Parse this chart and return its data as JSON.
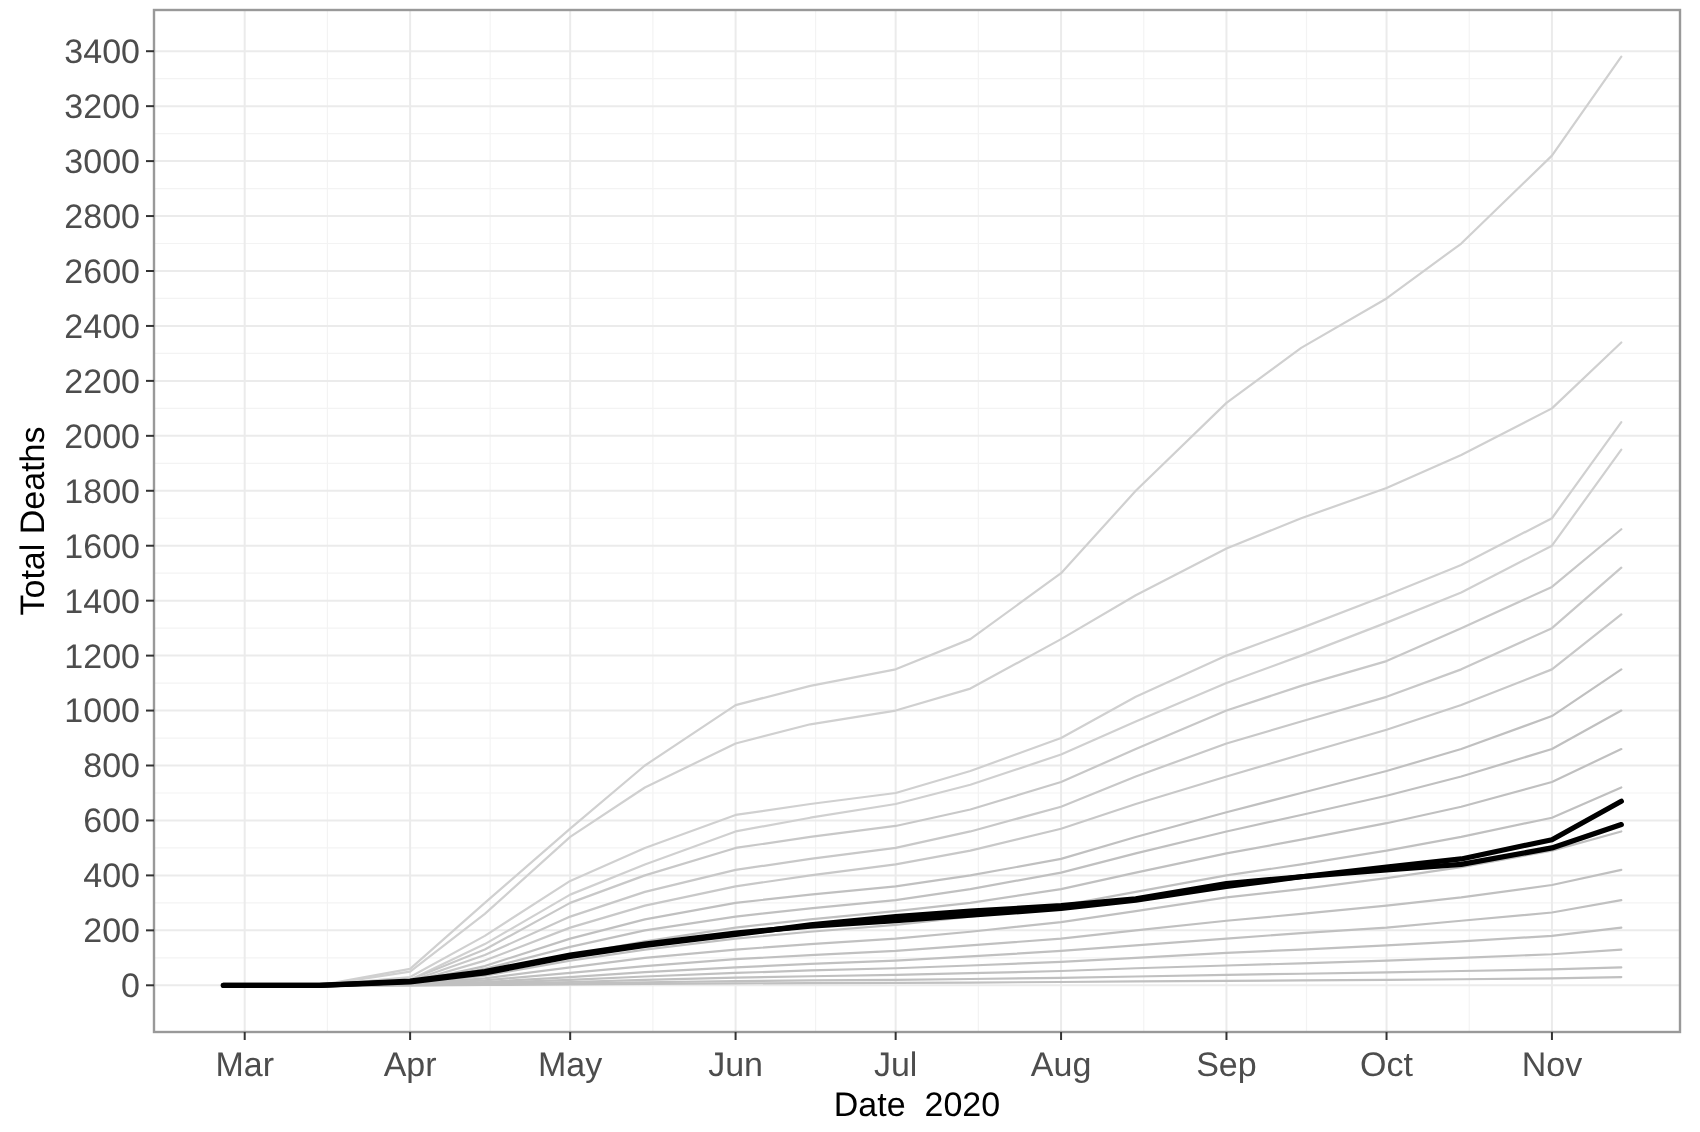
{
  "chart_data": {
    "type": "line",
    "xlabel": "Date  2020",
    "ylabel": "Total Deaths",
    "x": [
      "2020-03-15",
      "2020-04-01",
      "2020-04-15",
      "2020-05-01",
      "2020-05-15",
      "2020-06-01",
      "2020-06-15",
      "2020-07-01",
      "2020-07-15",
      "2020-08-01",
      "2020-08-15",
      "2020-09-01",
      "2020-09-15",
      "2020-10-01",
      "2020-10-15",
      "2020-11-01",
      "2020-11-14"
    ],
    "series": [
      {
        "color": "#d0d0d0",
        "values": [
          0,
          60,
          300,
          570,
          800,
          1020,
          1090,
          1150,
          1260,
          1500,
          1800,
          2120,
          2320,
          2500,
          2700,
          3020,
          3380
        ]
      },
      {
        "color": "#d0d0d0",
        "values": [
          0,
          50,
          260,
          540,
          720,
          880,
          950,
          1000,
          1080,
          1260,
          1420,
          1590,
          1700,
          1810,
          1930,
          2100,
          2340
        ]
      },
      {
        "color": "#d0d0d0",
        "values": [
          0,
          30,
          180,
          380,
          500,
          620,
          660,
          700,
          780,
          900,
          1050,
          1200,
          1300,
          1420,
          1530,
          1700,
          2050
        ]
      },
      {
        "color": "#d0d0d0",
        "values": [
          0,
          20,
          150,
          330,
          440,
          560,
          610,
          660,
          730,
          840,
          960,
          1100,
          1200,
          1320,
          1430,
          1600,
          1950
        ]
      },
      {
        "color": "#c8c8c8",
        "values": [
          0,
          20,
          130,
          300,
          400,
          500,
          540,
          580,
          640,
          740,
          860,
          1000,
          1090,
          1180,
          1300,
          1450,
          1660
        ]
      },
      {
        "color": "#c8c8c8",
        "values": [
          0,
          15,
          110,
          250,
          340,
          420,
          460,
          500,
          560,
          650,
          760,
          880,
          960,
          1050,
          1150,
          1300,
          1520
        ]
      },
      {
        "color": "#c8c8c8",
        "values": [
          0,
          10,
          90,
          210,
          290,
          360,
          400,
          440,
          490,
          570,
          660,
          760,
          840,
          930,
          1020,
          1150,
          1350
        ]
      },
      {
        "color": "#c0c0c0",
        "values": [
          0,
          10,
          70,
          170,
          240,
          300,
          330,
          360,
          400,
          460,
          540,
          630,
          700,
          780,
          860,
          980,
          1150
        ]
      },
      {
        "color": "#c0c0c0",
        "values": [
          0,
          8,
          60,
          140,
          200,
          250,
          280,
          310,
          350,
          410,
          480,
          560,
          620,
          690,
          760,
          860,
          1000
        ]
      },
      {
        "color": "#c0c0c0",
        "values": [
          0,
          5,
          45,
          110,
          160,
          210,
          240,
          270,
          300,
          350,
          410,
          480,
          530,
          590,
          650,
          740,
          860
        ]
      },
      {
        "color": "#c0c0c0",
        "values": [
          0,
          5,
          35,
          90,
          130,
          170,
          195,
          220,
          250,
          290,
          340,
          400,
          440,
          490,
          540,
          610,
          720
        ]
      },
      {
        "color": "#c0c0c0",
        "values": [
          0,
          4,
          25,
          65,
          100,
          130,
          150,
          170,
          195,
          230,
          270,
          320,
          350,
          390,
          430,
          490,
          560
        ]
      },
      {
        "color": "#c0c0c0",
        "values": [
          0,
          3,
          18,
          45,
          70,
          95,
          110,
          125,
          145,
          170,
          200,
          235,
          260,
          290,
          320,
          365,
          420
        ]
      },
      {
        "color": "#c0c0c0",
        "values": [
          0,
          2,
          12,
          30,
          48,
          65,
          78,
          90,
          105,
          125,
          145,
          170,
          190,
          210,
          235,
          265,
          310
        ]
      },
      {
        "color": "#c0c0c0",
        "values": [
          0,
          1,
          8,
          20,
          32,
          45,
          54,
          62,
          72,
          85,
          100,
          118,
          130,
          145,
          160,
          180,
          210
        ]
      },
      {
        "color": "#c0c0c0",
        "values": [
          0,
          1,
          5,
          12,
          20,
          28,
          33,
          38,
          44,
          52,
          62,
          72,
          80,
          90,
          100,
          113,
          130
        ]
      },
      {
        "color": "#c0c0c0",
        "values": [
          0,
          0,
          3,
          7,
          11,
          15,
          18,
          20,
          23,
          27,
          32,
          38,
          42,
          47,
          52,
          58,
          65
        ]
      },
      {
        "color": "#c0c0c0",
        "values": [
          0,
          0,
          1,
          3,
          5,
          7,
          8,
          9,
          10,
          12,
          14,
          16,
          18,
          20,
          22,
          25,
          30
        ]
      },
      {
        "color": "#000000",
        "x": [
          "2020-02-26",
          "2020-03-15",
          "2020-04-01",
          "2020-04-15",
          "2020-05-01",
          "2020-05-15",
          "2020-06-01",
          "2020-06-15",
          "2020-07-01",
          "2020-07-15",
          "2020-08-01",
          "2020-08-15",
          "2020-09-01",
          "2020-09-15",
          "2020-10-01",
          "2020-10-15",
          "2020-11-01",
          "2020-11-14"
        ],
        "values": [
          0,
          0,
          15,
          50,
          110,
          150,
          190,
          215,
          235,
          255,
          280,
          310,
          360,
          395,
          430,
          460,
          530,
          670
        ]
      },
      {
        "color": "#000000",
        "x": [
          "2020-02-26",
          "2020-03-15",
          "2020-04-01",
          "2020-04-15",
          "2020-05-01",
          "2020-05-15",
          "2020-06-01",
          "2020-06-15",
          "2020-07-01",
          "2020-07-15",
          "2020-08-01",
          "2020-08-15",
          "2020-09-01",
          "2020-09-15",
          "2020-10-01",
          "2020-10-15",
          "2020-11-01",
          "2020-11-14"
        ],
        "values": [
          0,
          0,
          12,
          45,
          105,
          145,
          185,
          220,
          250,
          270,
          290,
          315,
          370,
          395,
          420,
          440,
          500,
          585
        ]
      }
    ],
    "xlim": [
      "2020-02-13",
      "2020-11-25"
    ],
    "xticks": [
      {
        "value": "2020-03-01",
        "label": "Mar"
      },
      {
        "value": "2020-04-01",
        "label": "Apr"
      },
      {
        "value": "2020-05-01",
        "label": "May"
      },
      {
        "value": "2020-06-01",
        "label": "Jun"
      },
      {
        "value": "2020-07-01",
        "label": "Jul"
      },
      {
        "value": "2020-08-01",
        "label": "Aug"
      },
      {
        "value": "2020-09-01",
        "label": "Sep"
      },
      {
        "value": "2020-10-01",
        "label": "Oct"
      },
      {
        "value": "2020-11-01",
        "label": "Nov"
      }
    ],
    "ylim": [
      -170,
      3550
    ],
    "yticks": [
      0,
      200,
      400,
      600,
      800,
      1000,
      1200,
      1400,
      1600,
      1800,
      2000,
      2200,
      2400,
      2600,
      2800,
      3000,
      3200,
      3400
    ],
    "grid": true,
    "line_style": "solid"
  }
}
